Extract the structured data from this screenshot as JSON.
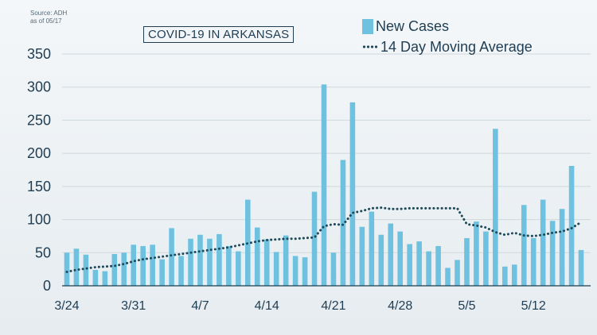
{
  "source": {
    "line1": "Source: ADH",
    "line2": "as of 05/17"
  },
  "chart_data": {
    "type": "bar",
    "title": "COVID-19 IN ARKANSAS",
    "xlabel": "",
    "ylabel": "",
    "ylim": [
      0,
      350
    ],
    "yticks": [
      0,
      50,
      100,
      150,
      200,
      250,
      300,
      350
    ],
    "grid": true,
    "legend_position": "top-right",
    "colors": {
      "bars": "#6ec1df",
      "line": "#1e4a5a",
      "axis": "#1f3d52"
    },
    "x_tick_labels": [
      {
        "index": 0,
        "label": "3/24"
      },
      {
        "index": 7,
        "label": "3/31"
      },
      {
        "index": 14,
        "label": "4/7"
      },
      {
        "index": 21,
        "label": "4/14"
      },
      {
        "index": 28,
        "label": "4/21"
      },
      {
        "index": 35,
        "label": "4/28"
      },
      {
        "index": 42,
        "label": "5/5"
      },
      {
        "index": 49,
        "label": "5/12"
      }
    ],
    "categories": [
      "3/24",
      "3/25",
      "3/26",
      "3/27",
      "3/28",
      "3/29",
      "3/30",
      "3/31",
      "4/1",
      "4/2",
      "4/3",
      "4/4",
      "4/5",
      "4/6",
      "4/7",
      "4/8",
      "4/9",
      "4/10",
      "4/11",
      "4/12",
      "4/13",
      "4/14",
      "4/15",
      "4/16",
      "4/17",
      "4/18",
      "4/19",
      "4/20",
      "4/21",
      "4/22",
      "4/23",
      "4/24",
      "4/25",
      "4/26",
      "4/27",
      "4/28",
      "4/29",
      "4/30",
      "5/1",
      "5/2",
      "5/3",
      "5/4",
      "5/5",
      "5/6",
      "5/7",
      "5/8",
      "5/9",
      "5/10",
      "5/11",
      "5/12",
      "5/13",
      "5/14",
      "5/15",
      "5/16",
      "5/17"
    ],
    "series": [
      {
        "name": "New Cases",
        "type": "bar",
        "values": [
          50,
          56,
          47,
          24,
          22,
          48,
          50,
          62,
          60,
          62,
          40,
          87,
          45,
          71,
          77,
          71,
          78,
          60,
          52,
          130,
          88,
          70,
          51,
          76,
          45,
          43,
          142,
          304,
          50,
          190,
          277,
          89,
          112,
          77,
          94,
          82,
          63,
          67,
          52,
          60,
          27,
          39,
          72,
          97,
          82,
          237,
          29,
          32,
          122,
          72,
          130,
          98,
          116,
          181,
          54
        ]
      },
      {
        "name": "14 Day Moving Average",
        "type": "line",
        "values": [
          21,
          24,
          26,
          28,
          29,
          30,
          33,
          37,
          40,
          42,
          44,
          46,
          48,
          50,
          52,
          54,
          56,
          58,
          61,
          64,
          67,
          69,
          70,
          71,
          71,
          72,
          73,
          90,
          93,
          92,
          110,
          113,
          117,
          118,
          116,
          116,
          117,
          117,
          117,
          117,
          117,
          117,
          93,
          91,
          88,
          81,
          77,
          80,
          76,
          75,
          77,
          80,
          82,
          87,
          96
        ]
      }
    ]
  }
}
